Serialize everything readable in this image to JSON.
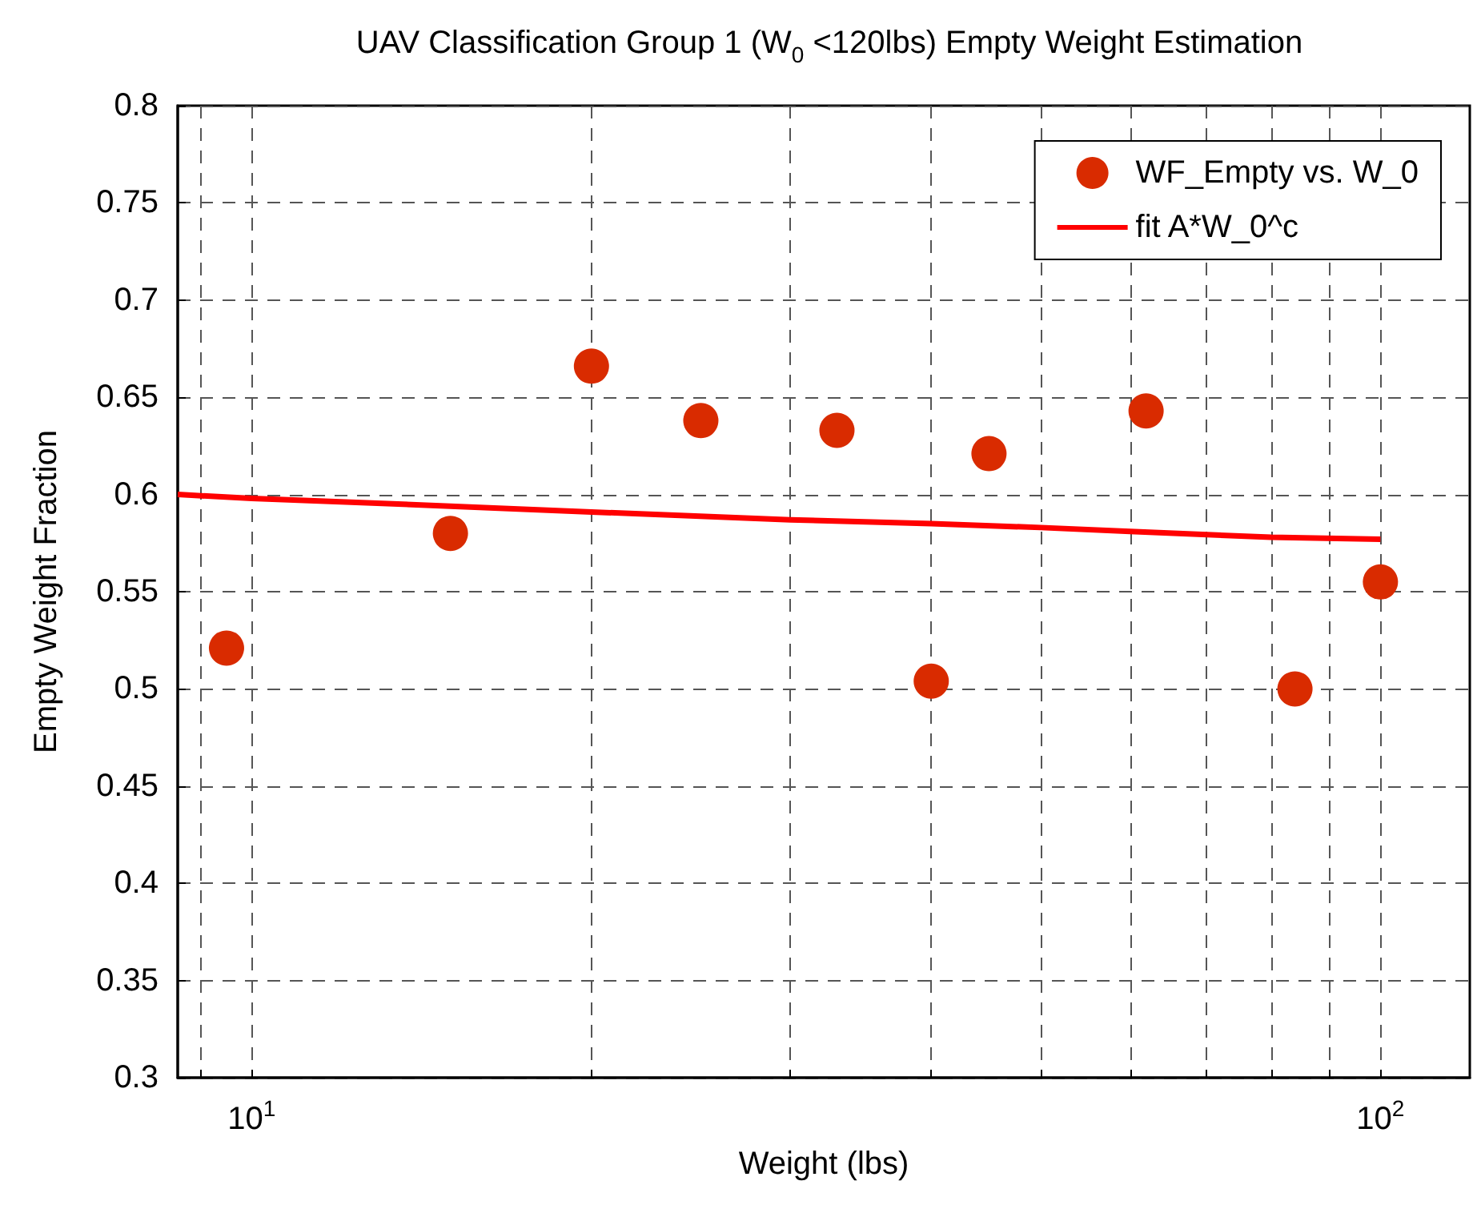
{
  "chart_data": {
    "type": "scatter",
    "title": "UAV Classification Group 1 (W$_{0}$ <120lbs) Empty Weight Estimation",
    "xlabel": "Weight (lbs)",
    "ylabel": "Empty Weight Fraction",
    "log": "x",
    "xlim": [
      8.6,
      120
    ],
    "xticks": [
      {
        "value": 9,
        "label": null
      },
      {
        "value": 10,
        "label": "10$^{1}$"
      },
      {
        "value": 20,
        "label": null
      },
      {
        "value": 30,
        "label": null
      },
      {
        "value": 40,
        "label": null
      },
      {
        "value": 50,
        "label": null
      },
      {
        "value": 60,
        "label": null
      },
      {
        "value": 70,
        "label": null
      },
      {
        "value": 80,
        "label": null
      },
      {
        "value": 90,
        "label": null
      },
      {
        "value": 100,
        "label": "10$^{2}$"
      }
    ],
    "ylim": [
      0.3,
      0.8
    ],
    "yticks": [
      0.3,
      0.35,
      0.4,
      0.45,
      0.5,
      0.55,
      0.6,
      0.65,
      0.7,
      0.75,
      0.8
    ],
    "grid": true,
    "legend": "top right",
    "series": [
      {
        "name": "WF_Empty vs. W_0",
        "marker": "circle",
        "color": "#d92b00",
        "x": [
          9.5,
          15,
          20,
          25,
          33,
          40,
          45,
          62,
          84,
          100
        ],
        "values": [
          0.521,
          0.58,
          0.666,
          0.638,
          0.633,
          0.504,
          0.621,
          0.643,
          0.5,
          0.555
        ]
      },
      {
        "name": "fit A*W_0^c",
        "type": "line",
        "marker": "none",
        "color": "#ff0000",
        "x": [
          8.6,
          10,
          15,
          20,
          30,
          40,
          50,
          60,
          80,
          100
        ],
        "values": [
          0.6,
          0.598,
          0.594,
          0.591,
          0.587,
          0.585,
          0.583,
          0.581,
          0.578,
          0.577
        ]
      }
    ]
  }
}
